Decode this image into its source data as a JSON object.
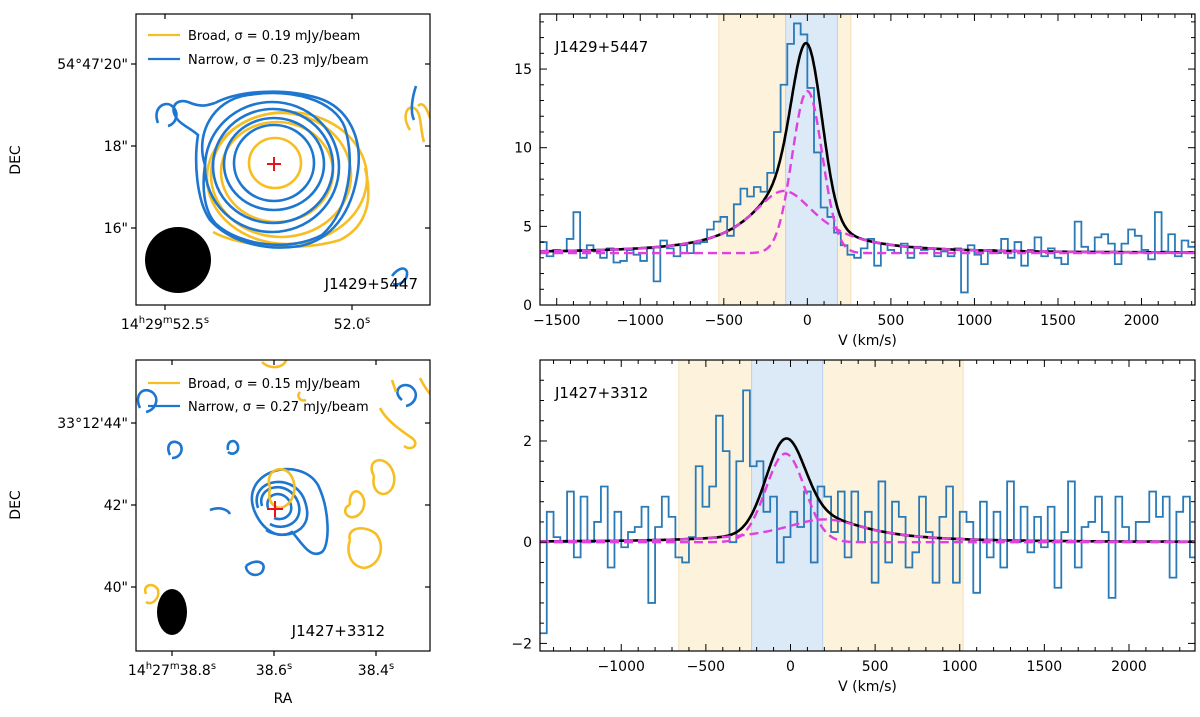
{
  "figure": {
    "contour_panels": [
      {
        "id": "top",
        "dec_ticks": [
          "54°47'20\"",
          "18\"",
          "16\""
        ],
        "ra_ticks": [
          "14h29m52.5s",
          "52.0s"
        ],
        "ra_labels": [
          {
            "main": "14",
            "sup1": "h",
            "mid": "29",
            "sup2": "m",
            "tail": "52.5",
            "sup3": "s"
          },
          {
            "main": "52.0",
            "sup1": "s"
          }
        ],
        "ylabel": "DEC",
        "legend": [
          {
            "label": "Broad, σ = 0.19 mJy/beam",
            "color": "#f7be23"
          },
          {
            "label": "Narrow, σ = 0.23 mJy/beam",
            "color": "#1d76cf"
          }
        ],
        "source_label": "J1429+5447"
      },
      {
        "id": "bottom",
        "dec_ticks": [
          "33°12'44\"",
          "42\"",
          "40\""
        ],
        "ra_ticks": [
          "14h27m38.8s",
          "38.6s",
          "38.4s"
        ],
        "ra_labels": [
          {
            "main": "14",
            "sup1": "h",
            "mid": "27",
            "sup2": "m",
            "tail": "38.8",
            "sup3": "s"
          },
          {
            "main": "38.6",
            "sup1": "s"
          },
          {
            "main": "38.4",
            "sup1": "s"
          }
        ],
        "ylabel": "DEC",
        "xlabel": "RA",
        "legend": [
          {
            "label": "Broad, σ = 0.15 mJy/beam",
            "color": "#f7be23"
          },
          {
            "label": "Narrow, σ = 0.27 mJy/beam",
            "color": "#1d76cf"
          }
        ],
        "source_label": "J1427+3312"
      }
    ]
  },
  "chart_data": [
    {
      "type": "line",
      "title": "J1429+5447",
      "xlabel": "V (km/s)",
      "ylabel": "",
      "xlim": [
        -1600,
        2320
      ],
      "ylim": [
        0,
        18.5
      ],
      "xticks": [
        -1500,
        -1000,
        -500,
        0,
        500,
        1000,
        1500,
        2000
      ],
      "yticks": [
        0,
        5,
        10,
        15
      ],
      "broad_window": [
        -530,
        260
      ],
      "narrow_window": [
        -130,
        180
      ],
      "spectrum": {
        "x_start": -1600,
        "bin_width": 40,
        "values": [
          4.0,
          3.1,
          3.5,
          3.4,
          4.2,
          5.9,
          3.0,
          3.8,
          3.4,
          3.0,
          3.6,
          2.7,
          2.8,
          3.5,
          3.2,
          2.8,
          3.6,
          1.5,
          4.1,
          3.6,
          3.1,
          3.8,
          3.3,
          3.9,
          4.0,
          4.8,
          5.3,
          5.6,
          4.4,
          6.4,
          7.4,
          6.9,
          7.5,
          7.2,
          8.4,
          11.0,
          14.0,
          16.6,
          17.9,
          17.2,
          13.8,
          9.7,
          6.2,
          5.6,
          4.6,
          3.8,
          3.2,
          3.0,
          3.6,
          4.2,
          2.5,
          3.9,
          3.5,
          3.3,
          3.9,
          3.0,
          3.7,
          3.5,
          3.6,
          3.1,
          3.4,
          3.1,
          3.6,
          0.8,
          3.8,
          3.2,
          2.6,
          3.5,
          3.3,
          4.2,
          3.0,
          4.0,
          2.5,
          3.5,
          4.3,
          3.1,
          3.6,
          3.0,
          2.6,
          3.4,
          5.3,
          3.7,
          3.4,
          4.3,
          4.5,
          3.9,
          2.6,
          3.9,
          4.8,
          4.4,
          3.5,
          2.9,
          5.9,
          3.4,
          4.5,
          3.1,
          4.1,
          3.7
        ]
      },
      "model": {
        "baseline": 3.3,
        "narrow": {
          "amp": 10.3,
          "center": 0,
          "sigma": 90
        },
        "broad": {
          "amp": 3.95,
          "center": -140,
          "gamma": 250
        },
        "total_peak": 17.0
      },
      "series": [
        {
          "name": "spectrum",
          "color": "#1f77b4"
        },
        {
          "name": "total fit",
          "color": "#000000"
        },
        {
          "name": "components",
          "color": "#e040e0"
        }
      ]
    },
    {
      "type": "line",
      "title": "J1427+3312",
      "xlabel": "V (km/s)",
      "ylabel": "",
      "xlim": [
        -1480,
        2390
      ],
      "ylim": [
        -2.15,
        3.6
      ],
      "xticks": [
        -1000,
        -500,
        0,
        500,
        1000,
        1500,
        2000
      ],
      "yticks": [
        -2,
        0,
        2
      ],
      "broad_window": [
        -660,
        1020
      ],
      "narrow_window": [
        -230,
        190
      ],
      "spectrum": {
        "x_start": -1480,
        "bin_width": 40,
        "values": [
          -1.8,
          0.6,
          0.1,
          0.0,
          1.0,
          -0.3,
          0.9,
          0.0,
          0.4,
          1.1,
          -0.5,
          0.6,
          -0.1,
          0.2,
          0.3,
          0.7,
          -1.2,
          0.3,
          0.9,
          0.5,
          -0.3,
          -0.4,
          0.1,
          1.5,
          0.7,
          1.1,
          2.5,
          1.8,
          0.0,
          1.6,
          3.0,
          1.5,
          1.6,
          0.6,
          0.9,
          -0.4,
          0.1,
          0.6,
          0.3,
          1.0,
          -0.4,
          1.1,
          0.9,
          0.2,
          1.0,
          -0.3,
          1.0,
          0.0,
          0.6,
          -0.8,
          1.2,
          -0.4,
          0.8,
          0.5,
          -0.5,
          -0.2,
          0.9,
          0.2,
          -0.8,
          0.5,
          1.1,
          -0.8,
          0.6,
          0.4,
          -1.0,
          0.8,
          -0.3,
          0.6,
          -0.5,
          1.2,
          0.0,
          0.7,
          -0.2,
          0.5,
          -0.1,
          0.7,
          -0.9,
          0.2,
          1.2,
          -0.5,
          0.3,
          0.4,
          0.9,
          0.2,
          -1.1,
          0.9,
          0.3,
          0.0,
          0.4,
          0.4,
          1.0,
          0.5,
          0.9,
          -0.7,
          0.6,
          0.9,
          -0.3
        ]
      },
      "model": {
        "baseline": 0,
        "narrow": {
          "amp": 1.75,
          "center": -30,
          "sigma": 115
        },
        "broad": {
          "amp": 0.45,
          "center": 200,
          "gamma": 320
        },
        "total_peak": 2.2
      },
      "series": [
        {
          "name": "spectrum",
          "color": "#1f77b4"
        },
        {
          "name": "total fit",
          "color": "#000000"
        },
        {
          "name": "components",
          "color": "#e040e0"
        }
      ]
    }
  ]
}
